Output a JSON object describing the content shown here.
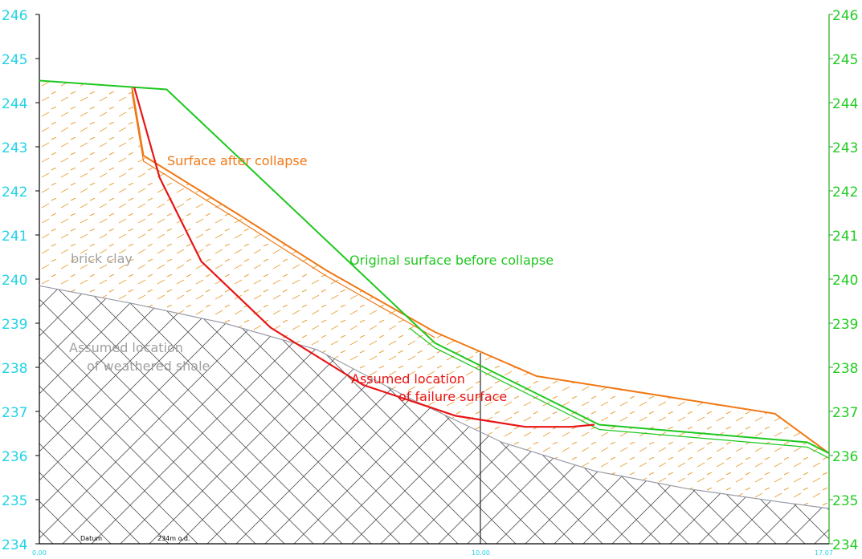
{
  "axes": {
    "left_ticks": [
      "246",
      "245",
      "244",
      "243",
      "242",
      "241",
      "240",
      "239",
      "238",
      "237",
      "236",
      "235",
      "234"
    ],
    "right_ticks": [
      "246",
      "245",
      "244",
      "243",
      "242",
      "241",
      "240",
      "239",
      "238",
      "237",
      "236",
      "235",
      "234"
    ],
    "bottom_ticks": [
      "0.00",
      "10.00",
      "17.07"
    ],
    "tick_color_left": "#22d3e6",
    "tick_color_right": "#22cc22",
    "tick_color_bottom": "#22d3e6"
  },
  "labels": {
    "surface_after": "Surface after collapse",
    "original_surface": "Original surface before collapse",
    "brick_clay": "brick clay",
    "shale_line1": "Assumed location",
    "shale_line2": "of weathered shale",
    "failure_line1": "Assumed location",
    "failure_line2": "of failure surface",
    "datum": "Datum",
    "datum_value": "234m o.d."
  },
  "colors": {
    "original_surface": "#1ec81e",
    "after_collapse": "#f07814",
    "failure_surface": "#e81414",
    "shale_hatch": "#555555",
    "clay_dash": "#e8a23c",
    "label_grey": "#a0a0a0"
  },
  "chart_data": {
    "type": "line",
    "xlabel": "",
    "ylabel": "",
    "xlim": [
      0,
      17.07
    ],
    "ylim": [
      234,
      246
    ],
    "series": [
      {
        "name": "Original surface before collapse",
        "x": [
          0,
          2.05,
          2.75,
          8.55,
          12.1,
          16.6,
          17.07
        ],
        "y": [
          244.5,
          244.35,
          244.3,
          238.55,
          236.7,
          236.3,
          236.05
        ]
      },
      {
        "name": "Surface after collapse",
        "x": [
          2.0,
          2.25,
          4.25,
          6.2,
          8.55,
          10.75,
          15.9,
          17.07
        ],
        "y": [
          244.35,
          242.8,
          241.5,
          240.2,
          238.8,
          237.8,
          236.95,
          236.05
        ]
      },
      {
        "name": "Assumed location of failure surface",
        "x": [
          2.05,
          2.6,
          3.5,
          5.0,
          7.0,
          9.0,
          10.5,
          11.5,
          12.0
        ],
        "y": [
          244.35,
          242.3,
          240.4,
          238.9,
          237.6,
          236.9,
          236.65,
          236.65,
          236.7
        ]
      },
      {
        "name": "Assumed location of weathered shale",
        "x": [
          0,
          2.0,
          4.0,
          6.0,
          8.0,
          10.0,
          12.0,
          14.0,
          16.0,
          17.07
        ],
        "y": [
          239.85,
          239.45,
          239.0,
          238.4,
          237.3,
          236.3,
          235.65,
          235.25,
          234.95,
          234.8
        ]
      }
    ]
  }
}
